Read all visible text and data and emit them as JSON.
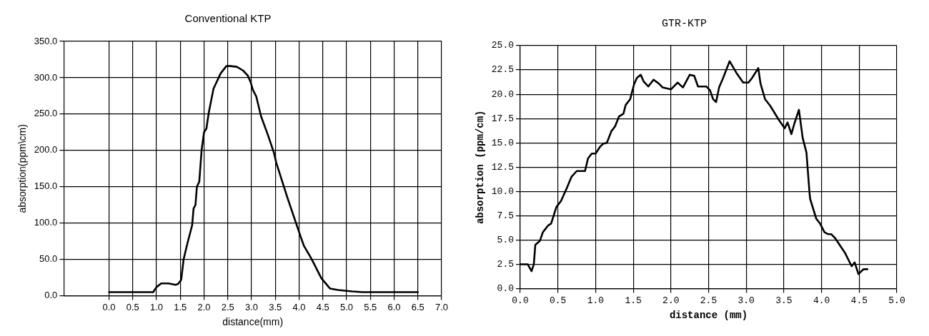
{
  "chart_data": [
    {
      "type": "line",
      "title": "Conventional KTP",
      "xlabel": "distance(mm)",
      "ylabel": "absorption(ppm\\cm)",
      "xlim": [
        -0.95,
        7.0
      ],
      "xticks": [
        {
          "value": 0,
          "label": "0.0"
        },
        {
          "value": 0.5,
          "label": "0.5"
        },
        {
          "value": 1,
          "label": "1.0"
        },
        {
          "value": 1.5,
          "label": "1.5"
        },
        {
          "value": 2,
          "label": "2.0"
        },
        {
          "value": 2.5,
          "label": "2.5"
        },
        {
          "value": 3,
          "label": "3.0"
        },
        {
          "value": 3.5,
          "label": "3.5"
        },
        {
          "value": 4,
          "label": "4.0"
        },
        {
          "value": 4.5,
          "label": "4.5"
        },
        {
          "value": 5,
          "label": "5.0"
        },
        {
          "value": 5.5,
          "label": "5.5"
        },
        {
          "value": 6,
          "label": "6.0"
        },
        {
          "value": 6.5,
          "label": "6.5"
        },
        {
          "value": 7,
          "label": "7.0"
        }
      ],
      "ylim": [
        0,
        350
      ],
      "yticks": [
        {
          "value": 0,
          "label": "0.0"
        },
        {
          "value": 50,
          "label": "50.0"
        },
        {
          "value": 100,
          "label": "100.0"
        },
        {
          "value": 150,
          "label": "150.0"
        },
        {
          "value": 200,
          "label": "200.0"
        },
        {
          "value": 250,
          "label": "250.0"
        },
        {
          "value": 300,
          "label": "300.0"
        },
        {
          "value": 350,
          "label": "350.0"
        }
      ],
      "grid": true,
      "legend": false,
      "marker": "none",
      "line_style": "solid",
      "series": [
        {
          "color": "#000000",
          "x": [
            0,
            0.5,
            0.93,
            1.0,
            1.1,
            1.25,
            1.4,
            1.45,
            1.52,
            1.57,
            1.65,
            1.75,
            1.78,
            1.82,
            1.85,
            1.9,
            1.95,
            2.0,
            2.05,
            2.1,
            2.2,
            2.35,
            2.47,
            2.56,
            2.69,
            2.82,
            2.92,
            2.98,
            3.03,
            3.1,
            3.2,
            3.34,
            3.47,
            3.52,
            3.75,
            4.03,
            4.1,
            4.26,
            4.47,
            4.65,
            4.82,
            5.12,
            5.33,
            5.64,
            6.3,
            6.5
          ],
          "values": [
            5,
            5,
            5,
            12,
            17,
            17,
            15,
            16,
            22,
            50,
            72,
            97,
            120,
            125,
            150,
            157,
            201,
            225,
            230,
            252,
            285,
            306,
            316,
            316,
            315,
            310,
            303,
            294,
            283,
            274,
            247,
            222,
            197,
            183,
            136,
            82,
            69,
            51,
            24,
            10,
            8,
            6,
            5,
            5,
            5,
            5
          ]
        }
      ]
    },
    {
      "type": "line",
      "title": "GTR-KTP",
      "xlabel": "distance (mm)",
      "ylabel": "absorption (ppm/cm)",
      "xlim": [
        0,
        5
      ],
      "xticks": [
        {
          "value": 0,
          "label": "0.0"
        },
        {
          "value": 0.5,
          "label": "0.5"
        },
        {
          "value": 1,
          "label": "1.0"
        },
        {
          "value": 1.5,
          "label": "1.5"
        },
        {
          "value": 2,
          "label": "2.0"
        },
        {
          "value": 2.5,
          "label": "2.5"
        },
        {
          "value": 3,
          "label": "3.0"
        },
        {
          "value": 3.5,
          "label": "3.5"
        },
        {
          "value": 4,
          "label": "4.0"
        },
        {
          "value": 4.5,
          "label": "4.5"
        },
        {
          "value": 5,
          "label": "5.0"
        }
      ],
      "ylim": [
        0,
        25
      ],
      "yticks": [
        {
          "value": 0,
          "label": "0.0"
        },
        {
          "value": 2.5,
          "label": "2.5"
        },
        {
          "value": 5,
          "label": "5.0"
        },
        {
          "value": 7.5,
          "label": "7.5"
        },
        {
          "value": 10,
          "label": "10.0"
        },
        {
          "value": 12.5,
          "label": "12.5"
        },
        {
          "value": 15,
          "label": "15.0"
        },
        {
          "value": 17.5,
          "label": "17.5"
        },
        {
          "value": 20,
          "label": "20.0"
        },
        {
          "value": 22.5,
          "label": "22.5"
        },
        {
          "value": 25,
          "label": "25.0"
        }
      ],
      "grid": true,
      "legend": false,
      "marker": "none",
      "line_style": "solid",
      "series": [
        {
          "color": "#000000",
          "x": [
            0,
            0.1,
            0.15,
            0.18,
            0.2,
            0.26,
            0.3,
            0.37,
            0.41,
            0.48,
            0.54,
            0.61,
            0.68,
            0.75,
            0.86,
            0.9,
            0.95,
            1.0,
            1.06,
            1.1,
            1.15,
            1.21,
            1.26,
            1.31,
            1.37,
            1.4,
            1.46,
            1.51,
            1.55,
            1.6,
            1.64,
            1.7,
            1.77,
            1.84,
            1.89,
            2.0,
            2.09,
            2.16,
            2.25,
            2.31,
            2.36,
            2.47,
            2.52,
            2.56,
            2.6,
            2.64,
            2.69,
            2.78,
            2.87,
            2.96,
            3.03,
            3.08,
            3.16,
            3.19,
            3.25,
            3.32,
            3.43,
            3.51,
            3.55,
            3.6,
            3.64,
            3.7,
            3.75,
            3.8,
            3.84,
            3.85,
            3.93,
            3.98,
            4.04,
            4.09,
            4.13,
            4.18,
            4.31,
            4.4,
            4.44,
            4.49,
            4.53,
            4.56,
            4.61
          ],
          "values": [
            2.5,
            2.5,
            1.8,
            2.5,
            4.5,
            4.9,
            5.8,
            6.5,
            6.7,
            8.4,
            9.0,
            10.2,
            11.5,
            12.1,
            12.1,
            13.4,
            13.9,
            13.9,
            14.6,
            14.9,
            15.0,
            16.2,
            16.7,
            17.7,
            18.0,
            18.9,
            19.5,
            21.0,
            21.7,
            22.0,
            21.3,
            20.8,
            21.5,
            21.1,
            20.7,
            20.5,
            21.2,
            20.7,
            22.0,
            21.9,
            20.8,
            20.8,
            20.4,
            19.5,
            19.2,
            20.7,
            21.6,
            23.4,
            22.2,
            21.2,
            21.2,
            21.7,
            22.7,
            21.1,
            19.5,
            18.8,
            17.4,
            16.5,
            17.1,
            15.9,
            17.0,
            18.4,
            15.5,
            14.0,
            9.9,
            9.2,
            7.2,
            6.7,
            5.8,
            5.6,
            5.6,
            5.2,
            3.7,
            2.3,
            2.7,
            1.5,
            1.8,
            2.0,
            2.0
          ]
        }
      ]
    }
  ]
}
